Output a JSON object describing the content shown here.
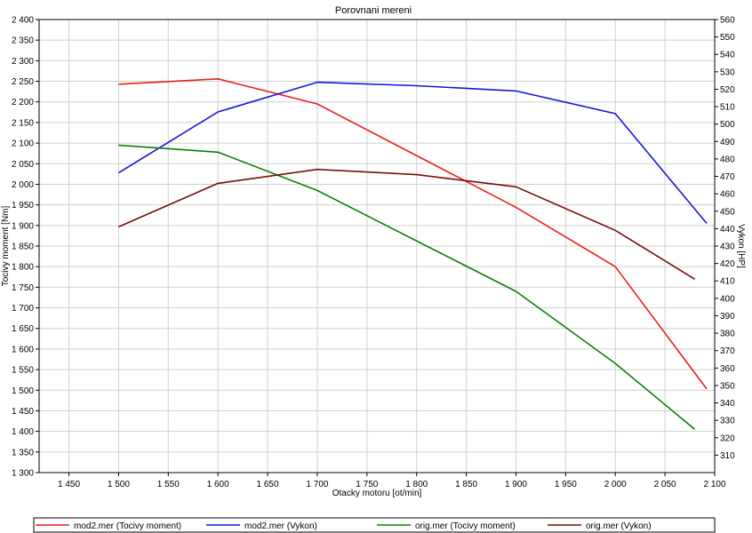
{
  "chart_data": {
    "type": "line",
    "title": "Porovnani mereni",
    "xlabel": "Otacky motoru [ot/min]",
    "ylabel_left": "Tocivy moment [Nm]",
    "ylabel_right": "Vykon [HP]",
    "xlim": [
      1420,
      2100
    ],
    "ylim_left": [
      1300,
      2400
    ],
    "ylim_right": [
      300,
      560
    ],
    "x_ticks": [
      1450,
      1500,
      1550,
      1600,
      1650,
      1700,
      1750,
      1800,
      1850,
      1900,
      1950,
      2000,
      2050,
      2100
    ],
    "x_tick_labels": [
      "1 450",
      "1 500",
      "1 550",
      "1 600",
      "1 650",
      "1 700",
      "1 750",
      "1 800",
      "1 850",
      "1 900",
      "1 950",
      "2 000",
      "2 050",
      "2 100"
    ],
    "y_left_ticks": [
      1300,
      1350,
      1400,
      1450,
      1500,
      1550,
      1600,
      1650,
      1700,
      1750,
      1800,
      1850,
      1900,
      1950,
      2000,
      2050,
      2100,
      2150,
      2200,
      2250,
      2300,
      2350,
      2400
    ],
    "y_left_tick_labels": [
      "1 300",
      "1 350",
      "1 400",
      "1 450",
      "1 500",
      "1 550",
      "1 600",
      "1 650",
      "1 700",
      "1 750",
      "1 800",
      "1 850",
      "1 900",
      "1 950",
      "2 000",
      "2 050",
      "2 100",
      "2 150",
      "2 200",
      "2 250",
      "2 300",
      "2 350",
      "2 400"
    ],
    "y_right_ticks": [
      310,
      320,
      330,
      340,
      350,
      360,
      370,
      380,
      390,
      400,
      410,
      420,
      430,
      440,
      450,
      460,
      470,
      480,
      490,
      500,
      510,
      520,
      530,
      540,
      550,
      560
    ],
    "y_right_tick_labels": [
      "310",
      "320",
      "330",
      "340",
      "350",
      "360",
      "370",
      "380",
      "390",
      "400",
      "410",
      "420",
      "430",
      "440",
      "450",
      "460",
      "470",
      "480",
      "490",
      "500",
      "510",
      "520",
      "530",
      "540",
      "550",
      "560"
    ],
    "grid": true,
    "legend_position": "bottom",
    "series": [
      {
        "name": "mod2.mer  (Tocivy moment)",
        "axis": "left",
        "color": "#e8211a",
        "x": [
          1500,
          1600,
          1700,
          1900,
          2000,
          2092
        ],
        "y": [
          2243,
          2256,
          2195,
          1944,
          1800,
          1503
        ]
      },
      {
        "name": "mod2.mer  (Vykon)",
        "axis": "right",
        "color": "#1616d6",
        "x": [
          1500,
          1600,
          1700,
          1800,
          1900,
          2000,
          2092
        ],
        "y": [
          472,
          507,
          524,
          522,
          519,
          506,
          443
        ]
      },
      {
        "name": "orig.mer  (Tocivy moment)",
        "axis": "left",
        "color": "#0a800a",
        "x": [
          1500,
          1600,
          1700,
          1900,
          2000,
          2080
        ],
        "y": [
          2095,
          2078,
          1985,
          1740,
          1565,
          1405
        ]
      },
      {
        "name": "orig.mer  (Vykon)",
        "axis": "right",
        "color": "#7a0c0c",
        "x": [
          1500,
          1600,
          1700,
          1800,
          1900,
          2000,
          2080
        ],
        "y": [
          441,
          466,
          474,
          471,
          464,
          439,
          411
        ]
      }
    ]
  }
}
